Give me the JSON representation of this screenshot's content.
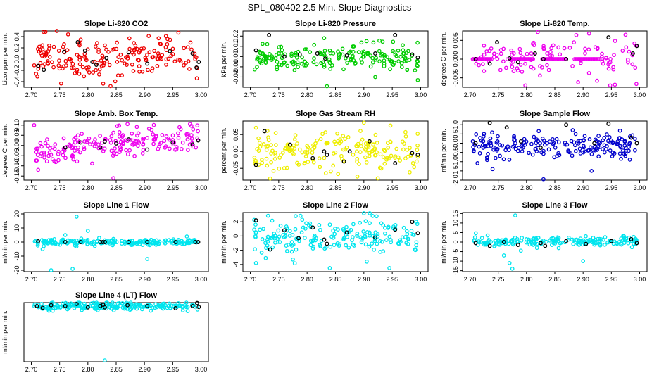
{
  "figure_title": "SPL_080402  2.5 Min. Slope Diagnostics",
  "colors": {
    "red": "#ee0000",
    "green": "#00cc00",
    "magenta": "#ee00ee",
    "yellow": "#eeee00",
    "blue": "#0000cc",
    "cyan": "#00e5ee",
    "black": "#000000"
  },
  "chart_data": [
    {
      "type": "scatter",
      "title": "Slope Li-820 CO2",
      "ylabel": "Licor ppm per min.",
      "color": "red",
      "xlim": [
        2.7,
        3.0
      ],
      "ylim": [
        -0.5,
        0.5
      ],
      "xticks": [
        "2.70",
        "2.75",
        "2.80",
        "2.85",
        "2.90",
        "2.95",
        "3.00"
      ],
      "yticks": [
        "-0.4",
        "-0.2",
        "0.0",
        "0.2",
        "0.4"
      ],
      "ytick_values": [
        -0.4,
        -0.2,
        0,
        0.2,
        0.4
      ],
      "seed": 11,
      "n": 190,
      "spread": 0.18,
      "center": 0.02,
      "outliers": [
        [
          2.745,
          0.5
        ],
        [
          2.84,
          -0.48
        ],
        [
          2.765,
          0.44
        ],
        [
          2.96,
          0.47
        ]
      ],
      "black_points": [
        [
          2.712,
          -0.12
        ],
        [
          2.722,
          -0.19
        ],
        [
          2.758,
          0.13
        ],
        [
          2.782,
          0.3
        ],
        [
          2.795,
          0.15
        ],
        [
          2.808,
          -0.05
        ],
        [
          2.815,
          -0.1
        ],
        [
          2.833,
          0.02
        ],
        [
          2.872,
          0.12
        ],
        [
          2.905,
          -0.08
        ],
        [
          2.945,
          0.14
        ],
        [
          2.985,
          0.1
        ],
        [
          2.992,
          -0.15
        ],
        [
          2.996,
          -0.05
        ]
      ]
    },
    {
      "type": "scatter",
      "title": "Slope Li-820 Pressure",
      "ylabel": "kPa per min.",
      "color": "green",
      "xlim": [
        2.7,
        3.0
      ],
      "ylim": [
        -0.03,
        0.025
      ],
      "xticks": [
        "2.70",
        "2.75",
        "2.80",
        "2.85",
        "2.90",
        "2.95",
        "3.00"
      ],
      "yticks": [
        "-0.02",
        "-0.01",
        "0.00",
        "0.01",
        "0.02"
      ],
      "ytick_values": [
        -0.02,
        -0.01,
        0,
        0.01,
        0.02
      ],
      "seed": 23,
      "n": 190,
      "spread": 0.006,
      "center": 0.0,
      "outliers": [
        [
          2.835,
          -0.029
        ],
        [
          2.995,
          -0.023
        ],
        [
          2.83,
          0.018
        ],
        [
          2.92,
          -0.02
        ]
      ],
      "black_points": [
        [
          2.71,
          0.006
        ],
        [
          2.733,
          0.021
        ],
        [
          2.76,
          0.0
        ],
        [
          2.787,
          0.002
        ],
        [
          2.818,
          0.003
        ],
        [
          2.832,
          -0.002
        ],
        [
          2.87,
          0.001
        ],
        [
          2.92,
          0.003
        ],
        [
          2.955,
          0.021
        ],
        [
          2.985,
          0.002
        ],
        [
          2.995,
          -0.001
        ]
      ]
    },
    {
      "type": "scatter",
      "title": "Slope Li-820 Temp.",
      "ylabel": "degrees C per min.",
      "color": "magenta",
      "xlim": [
        2.7,
        3.0
      ],
      "ylim": [
        -0.0075,
        0.0075
      ],
      "xticks": [
        "2.70",
        "2.75",
        "2.80",
        "2.85",
        "2.90",
        "2.95",
        "3.00"
      ],
      "yticks": [
        "-0.005",
        "0.000",
        "0.005"
      ],
      "ytick_values": [
        -0.005,
        0,
        0.005
      ],
      "seed": 37,
      "n": 110,
      "spread": 0.0028,
      "center": 0.0,
      "flat_segments": [
        [
          2.705,
          2.74
        ],
        [
          2.772,
          2.812
        ],
        [
          2.828,
          2.872
        ],
        [
          2.885,
          2.93
        ]
      ],
      "outliers": [
        [
          2.82,
          0.0072
        ],
        [
          2.948,
          -0.007
        ],
        [
          2.975,
          0.0065
        ]
      ],
      "black_points": [
        [
          2.71,
          0.0
        ],
        [
          2.735,
          -0.0012
        ],
        [
          2.748,
          0.0045
        ],
        [
          2.77,
          0.0002
        ],
        [
          2.785,
          -0.0008
        ],
        [
          2.815,
          0.0015
        ],
        [
          2.83,
          0.0
        ],
        [
          2.87,
          0.0
        ],
        [
          2.945,
          0.0058
        ],
        [
          2.988,
          0.0015
        ],
        [
          2.995,
          0.0035
        ]
      ]
    },
    {
      "type": "scatter",
      "title": "Slope Amb. Box Temp.",
      "ylabel": "degrees C per min.",
      "color": "magenta",
      "xlim": [
        2.7,
        3.0
      ],
      "ylim": [
        -0.17,
        0.12
      ],
      "xticks": [
        "2.70",
        "2.75",
        "2.80",
        "2.85",
        "2.90",
        "2.95",
        "3.00"
      ],
      "yticks": [
        "-0.15",
        "-0.10",
        "-0.05",
        "0.00",
        "0.05",
        "0.10"
      ],
      "ytick_values": [
        -0.15,
        -0.1,
        -0.05,
        0,
        0.05,
        0.1
      ],
      "seed": 41,
      "n": 190,
      "spread": 0.035,
      "trend": [
        -0.035,
        0.045
      ],
      "outliers": [
        [
          2.845,
          -0.16
        ],
        [
          2.87,
          0.105
        ],
        [
          2.705,
          0.1
        ]
      ],
      "black_points": [
        [
          2.76,
          -0.01
        ],
        [
          2.787,
          0.015
        ],
        [
          2.822,
          -0.01
        ],
        [
          2.83,
          0.02
        ],
        [
          2.85,
          0.01
        ],
        [
          2.872,
          0.03
        ],
        [
          2.905,
          -0.02
        ],
        [
          2.95,
          0.015
        ],
        [
          2.985,
          0.005
        ],
        [
          2.995,
          0.025
        ]
      ]
    },
    {
      "type": "scatter",
      "title": "Slope Gas Stream RH",
      "ylabel": "percent per min.",
      "color": "yellow",
      "xlim": [
        2.7,
        3.0
      ],
      "ylim": [
        -0.085,
        0.09
      ],
      "xticks": [
        "2.70",
        "2.75",
        "2.80",
        "2.85",
        "2.90",
        "2.95",
        "3.00"
      ],
      "yticks": [
        "-0.05",
        "0.00",
        "0.05"
      ],
      "ytick_values": [
        -0.05,
        0,
        0.05
      ],
      "seed": 53,
      "n": 190,
      "spread": 0.028,
      "center": 0.0,
      "outliers": [
        [
          2.735,
          -0.08
        ],
        [
          2.9,
          0.085
        ],
        [
          2.71,
          0.07
        ]
      ],
      "black_points": [
        [
          2.71,
          -0.04
        ],
        [
          2.725,
          0.06
        ],
        [
          2.77,
          0.02
        ],
        [
          2.81,
          -0.02
        ],
        [
          2.83,
          0.0
        ],
        [
          2.835,
          -0.01
        ],
        [
          2.865,
          -0.03
        ],
        [
          2.875,
          0.0
        ],
        [
          2.91,
          0.03
        ],
        [
          2.955,
          -0.035
        ],
        [
          2.985,
          -0.005
        ],
        [
          2.995,
          -0.01
        ]
      ]
    },
    {
      "type": "scatter",
      "title": "Slope Sample Flow",
      "ylabel": "ml/min per min.",
      "color": "blue",
      "xlim": [
        2.7,
        3.0
      ],
      "ylim": [
        -2.0,
        1.2
      ],
      "xticks": [
        "2.70",
        "2.75",
        "2.80",
        "2.85",
        "2.90",
        "2.95",
        "3.00"
      ],
      "yticks": [
        "-2.0",
        "-1.5",
        "-1.0",
        "-0.5",
        "0.0",
        "0.5",
        "1.0"
      ],
      "ytick_values": [
        -2,
        -1.5,
        -1,
        -0.5,
        0,
        0.5,
        1
      ],
      "seed": 67,
      "n": 190,
      "spread": 0.32,
      "center": -0.15,
      "outliers": [
        [
          2.83,
          -1.95
        ],
        [
          2.74,
          -1.4
        ],
        [
          2.915,
          -1.5
        ]
      ],
      "black_points": [
        [
          2.71,
          0.0
        ],
        [
          2.735,
          1.1
        ],
        [
          2.765,
          0.85
        ],
        [
          2.79,
          0.1
        ],
        [
          2.825,
          -0.25
        ],
        [
          2.87,
          1.0
        ],
        [
          2.92,
          0.0
        ],
        [
          2.945,
          1.05
        ],
        [
          2.985,
          0.3
        ],
        [
          2.995,
          0.0
        ]
      ]
    },
    {
      "type": "scatter",
      "title": "Slope Line 1 Flow",
      "ylabel": "ml/min per min.",
      "color": "cyan",
      "xlim": [
        2.7,
        3.0
      ],
      "ylim": [
        -21,
        21
      ],
      "xticks": [
        "2.70",
        "2.75",
        "2.80",
        "2.85",
        "2.90",
        "2.95",
        "3.00"
      ],
      "yticks": [
        "-20",
        "-10",
        "0",
        "10",
        "20"
      ],
      "ytick_values": [
        -20,
        -10,
        0,
        10,
        20
      ],
      "seed": 71,
      "n": 200,
      "spread": 1.1,
      "center": 0.0,
      "outliers": [
        [
          2.735,
          -20
        ],
        [
          2.773,
          -19
        ],
        [
          2.78,
          18
        ],
        [
          2.8,
          8
        ],
        [
          2.72,
          -5
        ],
        [
          2.76,
          5
        ],
        [
          2.905,
          -12
        ],
        [
          2.82,
          3
        ],
        [
          2.975,
          4
        ]
      ],
      "black_points": [
        [
          2.712,
          0.5
        ],
        [
          2.76,
          0.0
        ],
        [
          2.787,
          0.0
        ],
        [
          2.822,
          0.0
        ],
        [
          2.826,
          0.0
        ],
        [
          2.83,
          0.0
        ],
        [
          2.872,
          0.0
        ],
        [
          2.905,
          0.0
        ],
        [
          2.955,
          0.0
        ],
        [
          2.99,
          0.0
        ],
        [
          2.995,
          0.0
        ]
      ]
    },
    {
      "type": "scatter",
      "title": "Slope Line 2 Flow",
      "ylabel": "ml/min per min.",
      "color": "cyan",
      "xlim": [
        2.7,
        3.0
      ],
      "ylim": [
        -5.0,
        3.3
      ],
      "xticks": [
        "2.70",
        "2.75",
        "2.80",
        "2.85",
        "2.90",
        "2.95",
        "3.00"
      ],
      "yticks": [
        "-4",
        "-2",
        "0",
        "2"
      ],
      "ytick_values": [
        -4,
        -2,
        0,
        2
      ],
      "seed": 83,
      "n": 190,
      "spread": 1.15,
      "center": 0.0,
      "outliers": [
        [
          2.71,
          -3.8
        ],
        [
          2.775,
          -3.3
        ],
        [
          2.84,
          -4.5
        ],
        [
          2.905,
          -3.6
        ],
        [
          2.945,
          -4.5
        ],
        [
          2.9,
          3.2
        ],
        [
          2.78,
          2.8
        ]
      ],
      "black_points": [
        [
          2.71,
          2.2
        ],
        [
          2.735,
          -1.9
        ],
        [
          2.76,
          0.8
        ],
        [
          2.785,
          -0.3
        ],
        [
          2.81,
          1.2
        ],
        [
          2.83,
          -0.5
        ],
        [
          2.835,
          -1.1
        ],
        [
          2.87,
          0.5
        ],
        [
          2.92,
          -0.2
        ],
        [
          2.955,
          0.9
        ],
        [
          2.985,
          2.0
        ],
        [
          2.995,
          0.4
        ]
      ]
    },
    {
      "type": "scatter",
      "title": "Slope Line 3 Flow",
      "ylabel": "ml/min per min.",
      "color": "cyan",
      "xlim": [
        2.7,
        3.0
      ],
      "ylim": [
        -15.5,
        15.5
      ],
      "xticks": [
        "2.70",
        "2.75",
        "2.80",
        "2.85",
        "2.90",
        "2.95",
        "3.00"
      ],
      "yticks": [
        "-15",
        "-10",
        "-5",
        "0",
        "5",
        "10",
        "15"
      ],
      "ytick_values": [
        -15,
        -10,
        -5,
        0,
        5,
        10,
        15
      ],
      "seed": 97,
      "n": 190,
      "spread": 1.5,
      "center": 0.0,
      "outliers": [
        [
          2.775,
          -14
        ],
        [
          2.77,
          -11
        ],
        [
          2.78,
          14
        ],
        [
          2.9,
          -10
        ],
        [
          2.76,
          -7
        ],
        [
          2.79,
          -4.5
        ]
      ],
      "black_points": [
        [
          2.71,
          -0.5
        ],
        [
          2.735,
          -2.0
        ],
        [
          2.76,
          0.0
        ],
        [
          2.785,
          -1.5
        ],
        [
          2.825,
          -0.5
        ],
        [
          2.833,
          -2.0
        ],
        [
          2.87,
          0.5
        ],
        [
          2.905,
          -1.0
        ],
        [
          2.95,
          0.5
        ],
        [
          2.985,
          1.5
        ],
        [
          2.995,
          -0.5
        ]
      ]
    },
    {
      "type": "scatter",
      "title": "Slope Line 4 (LT) Flow",
      "ylabel": "ml/min per min.",
      "color": "cyan",
      "xlim": [
        2.7,
        3.0
      ],
      "ylim": [
        -12.8,
        0.8
      ],
      "xticks": [
        "2.70",
        "2.75",
        "2.80",
        "2.85",
        "2.90",
        "2.95",
        "3.00"
      ],
      "yticks": [],
      "ytick_values": [],
      "seed": 101,
      "n": 220,
      "spread": 0.45,
      "center": 0.0,
      "outliers": [
        [
          2.83,
          -12.5
        ],
        [
          2.77,
          0.6
        ]
      ],
      "black_points": [
        [
          2.71,
          0.0
        ],
        [
          2.72,
          -0.4
        ],
        [
          2.735,
          0.2
        ],
        [
          2.76,
          0.0
        ],
        [
          2.78,
          0.5
        ],
        [
          2.8,
          -0.3
        ],
        [
          2.822,
          0.0
        ],
        [
          2.827,
          0.3
        ],
        [
          2.83,
          -0.3
        ],
        [
          2.87,
          0.2
        ],
        [
          2.905,
          0.0
        ],
        [
          2.955,
          -0.5
        ],
        [
          2.985,
          0.0
        ],
        [
          2.993,
          0.7
        ],
        [
          2.996,
          -0.2
        ]
      ]
    }
  ]
}
